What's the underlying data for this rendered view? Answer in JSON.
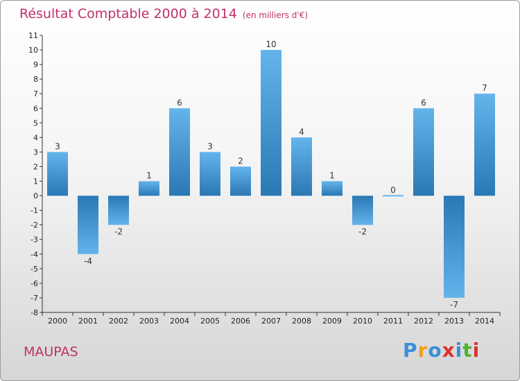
{
  "title": "Résultat Comptable 2000 à 2014",
  "subtitle": "(en milliers d'€)",
  "place": "MAUPAS",
  "logo": {
    "letters": [
      "P",
      "r",
      "o",
      "x",
      "i",
      "t",
      "i"
    ],
    "colors": [
      "#3a8fd8",
      "#f0a020",
      "#3a8fd8",
      "#e03030",
      "#3a8fd8",
      "#50b030",
      "#e03030"
    ]
  },
  "colors": {
    "bar_top": "#64b4ec",
    "bar_bottom": "#2a78b4",
    "title": "#c0306a"
  },
  "chart_data": {
    "type": "bar",
    "title": "Résultat Comptable 2000 à 2014",
    "xlabel": "",
    "ylabel": "",
    "categories": [
      "2000",
      "2001",
      "2002",
      "2003",
      "2004",
      "2005",
      "2006",
      "2007",
      "2008",
      "2009",
      "2010",
      "2011",
      "2012",
      "2013",
      "2014"
    ],
    "values": [
      3,
      -4,
      -2,
      1,
      6,
      3,
      2,
      10,
      4,
      1,
      -2,
      0,
      6,
      -7,
      7
    ],
    "data_labels": [
      "3",
      "-4",
      "-2",
      "1",
      "6",
      "3",
      "2",
      "10",
      "4",
      "1",
      "-2",
      "0",
      "6",
      "-7",
      "7"
    ],
    "ylim": [
      -8,
      11
    ],
    "yticks": [
      {
        "v": 11,
        "label": "11"
      },
      {
        "v": 10,
        "label": "10"
      },
      {
        "v": 9,
        "label": "9"
      },
      {
        "v": 8,
        "label": "8"
      },
      {
        "v": 7,
        "label": "7"
      },
      {
        "v": 6,
        "label": "6"
      },
      {
        "v": 5,
        "label": "5"
      },
      {
        "v": 4,
        "label": "4"
      },
      {
        "v": 3,
        "label": "3"
      },
      {
        "v": 2,
        "label": "2"
      },
      {
        "v": 1,
        "label": "1"
      },
      {
        "v": 0,
        "label": "0"
      },
      {
        "v": -1,
        "label": "-1"
      },
      {
        "v": -2,
        "label": "-2"
      },
      {
        "v": -3,
        "label": "-3"
      },
      {
        "v": -4,
        "label": "-4"
      },
      {
        "v": -5,
        "label": "-5"
      },
      {
        "v": -6,
        "label": "-6"
      },
      {
        "v": -7,
        "label": "-7"
      },
      {
        "v": -8,
        "label": "-8"
      }
    ],
    "grid": false
  }
}
